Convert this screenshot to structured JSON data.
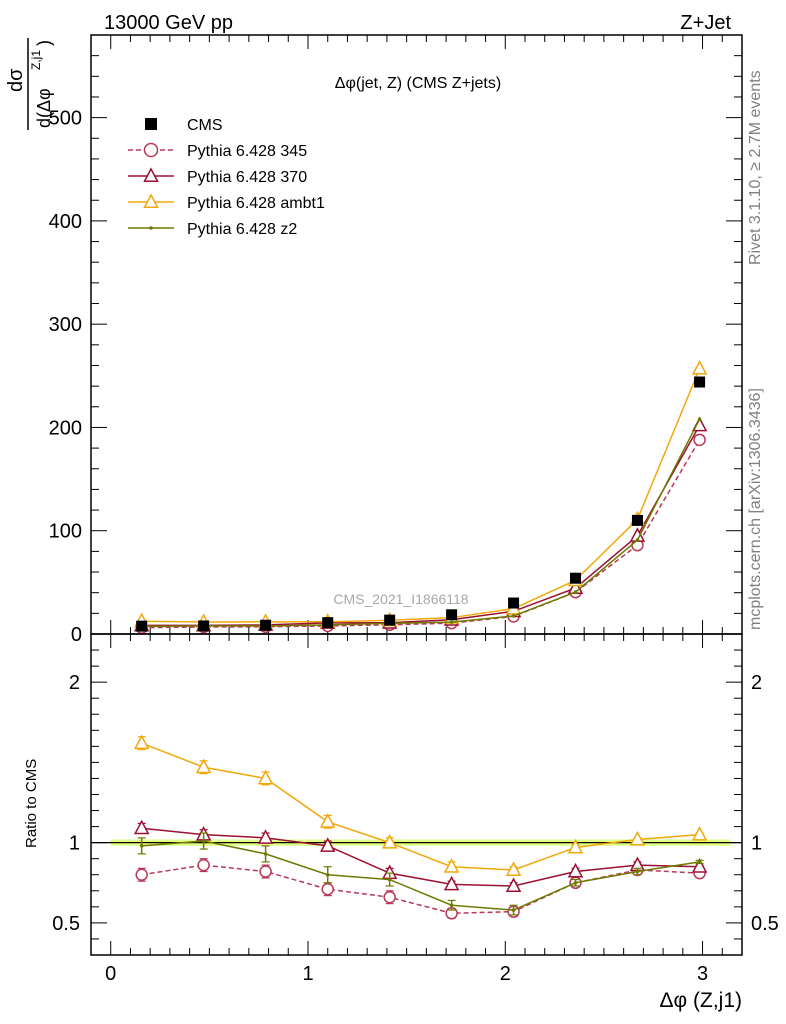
{
  "header": {
    "left": "13000 GeV pp",
    "right": "Z+Jet"
  },
  "side_labels": {
    "rivet": "Rivet 3.1.10, ≥ 2.7M events",
    "mcplots": "mcplots.cern.ch [arXiv:1306.3436]"
  },
  "watermark": "CMS_2021_I1866118",
  "axis": {
    "ylabel_top_numerator": "dσ",
    "ylabel_top_denominator": "d(Δφ",
    "ylabel_top_superscript": "Z,j1",
    "ylabel_top_close": ")",
    "ylabel_bottom": "Ratio to CMS",
    "xlabel": "Δφ (Z,j1)"
  },
  "chart_data": {
    "type": "line",
    "title": "Δφ(jet, Z) (CMS Z+jets)",
    "x": [
      0.157,
      0.471,
      0.785,
      1.1,
      1.414,
      1.728,
      2.042,
      2.356,
      2.67,
      2.985
    ],
    "xlim": [
      -0.1,
      3.2
    ],
    "xticks": [
      "0",
      "1",
      "2",
      "3"
    ],
    "main": {
      "ylim": [
        0,
        580
      ],
      "yticks": [
        "0",
        "100",
        "200",
        "300",
        "400",
        "500"
      ]
    },
    "ratio": {
      "ylim": [
        0.3,
        2.3
      ],
      "yticks": [
        "0.5",
        "1",
        "2"
      ]
    },
    "legend_position": "top-left",
    "series": [
      {
        "name": "CMS",
        "color": "#000000",
        "marker": "square",
        "values": [
          7.6,
          7.8,
          8.5,
          11.0,
          13.4,
          18.6,
          30.0,
          54.0,
          110.0,
          244.0
        ],
        "ratio": [
          1.0,
          1.0,
          1.0,
          1.0,
          1.0,
          1.0,
          1.0,
          1.0,
          1.0,
          1.0
        ],
        "ratio_err": [
          0.02,
          0.02,
          0.02,
          0.02,
          0.02,
          0.02,
          0.02,
          0.02,
          0.02,
          0.02
        ]
      },
      {
        "name": "Pythia 6.428 345",
        "color": "#b8395a",
        "marker": "circle",
        "dashed": true,
        "values": [
          6.1,
          6.8,
          7.0,
          7.8,
          8.9,
          10.5,
          17.0,
          40.5,
          86.0,
          188.0
        ],
        "ratio": [
          0.8,
          0.86,
          0.82,
          0.71,
          0.66,
          0.56,
          0.57,
          0.75,
          0.83,
          0.81
        ],
        "ratio_err": [
          0.04,
          0.04,
          0.04,
          0.04,
          0.04,
          0.03,
          0.03,
          0.02,
          0.02,
          0.01
        ]
      },
      {
        "name": "Pythia 6.428 370",
        "color": "#9b1030",
        "marker": "triangle",
        "values": [
          8.3,
          8.3,
          8.8,
          10.8,
          10.9,
          13.8,
          22.0,
          44.5,
          95.0,
          202.0
        ],
        "ratio": [
          1.09,
          1.05,
          1.03,
          0.98,
          0.81,
          0.74,
          0.73,
          0.82,
          0.86,
          0.85
        ],
        "ratio_err": [
          0.03,
          0.03,
          0.03,
          0.03,
          0.03,
          0.02,
          0.02,
          0.02,
          0.02,
          0.01
        ]
      },
      {
        "name": "Pythia 6.428 ambt1",
        "color": "#f0a80a",
        "marker": "triangle",
        "values": [
          12.4,
          11.6,
          11.8,
          11.9,
          13.3,
          15.8,
          24.6,
          52.0,
          111.0,
          257.0
        ],
        "ratio": [
          1.62,
          1.47,
          1.4,
          1.13,
          1.0,
          0.85,
          0.83,
          0.97,
          1.02,
          1.05
        ],
        "ratio_err": [
          0.04,
          0.04,
          0.04,
          0.04,
          0.03,
          0.03,
          0.02,
          0.02,
          0.01,
          0.01
        ]
      },
      {
        "name": "Pythia 6.428 z2",
        "color": "#6e7a00",
        "marker": "dot",
        "values": [
          7.4,
          7.9,
          7.8,
          8.8,
          10.3,
          11.5,
          17.5,
          40.6,
          91.0,
          208.0
        ],
        "ratio": [
          0.98,
          1.01,
          0.93,
          0.8,
          0.77,
          0.61,
          0.58,
          0.75,
          0.82,
          0.88
        ],
        "ratio_err": [
          0.05,
          0.05,
          0.05,
          0.05,
          0.04,
          0.03,
          0.03,
          0.02,
          0.02,
          0.01
        ]
      }
    ]
  }
}
